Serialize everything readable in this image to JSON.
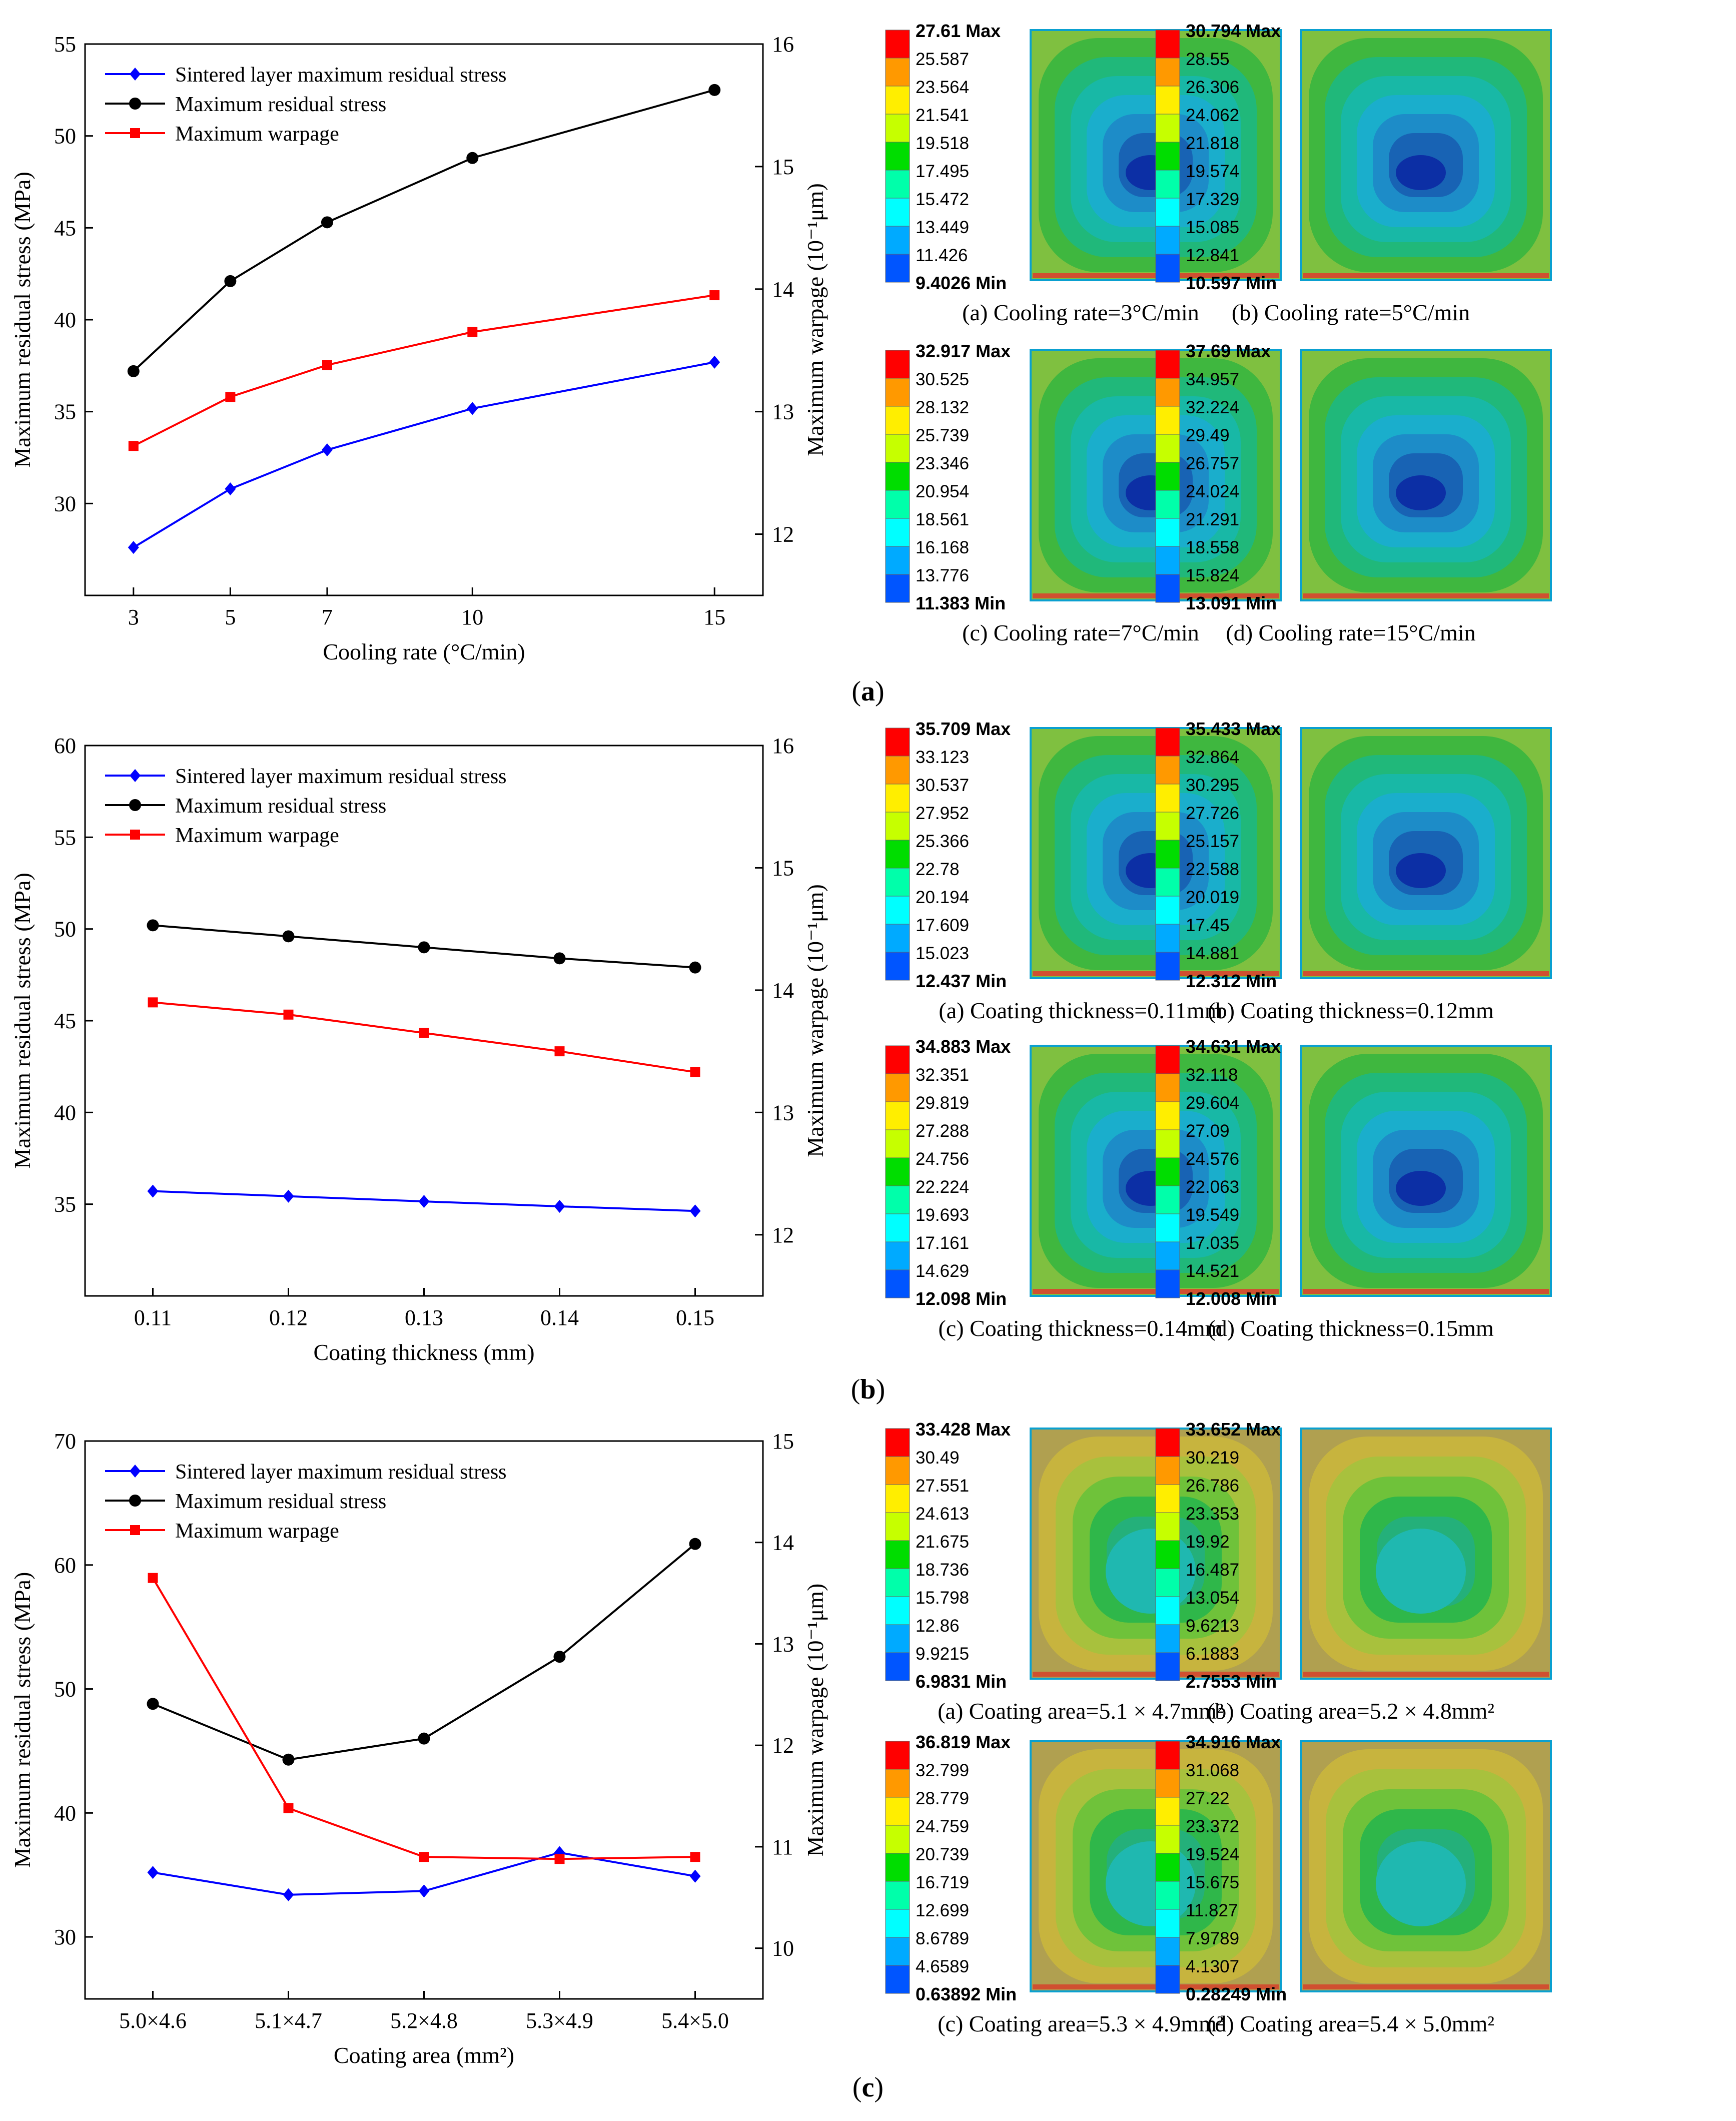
{
  "rows": [
    {
      "label": "a",
      "chart": {
        "type": "line",
        "categories": [
          "3",
          "5",
          "7",
          "10",
          "15"
        ],
        "x": [
          3,
          5,
          7,
          10,
          15
        ],
        "xlim": [
          2.0,
          16.0
        ],
        "xlabel": "Cooling rate (°C/min)",
        "ylabel": "Maximum residual stress (MPa)",
        "y2label": "Maximum warpage (10⁻¹μm)",
        "ylim": [
          25,
          55
        ],
        "yticks": [
          30,
          35,
          40,
          45,
          50,
          55
        ],
        "y2lim": [
          11.5,
          16
        ],
        "y2ticks": [
          12,
          13,
          14,
          15,
          16
        ],
        "legend_position": "top-left",
        "series": [
          {
            "name": "Sintered layer maximum residual stress",
            "color": "#0000ff",
            "marker": "diamond",
            "axis": "left",
            "values": [
              27.61,
              30.794,
              32.917,
              35.17,
              37.69
            ]
          },
          {
            "name": "Maximum residual stress",
            "color": "#000000",
            "marker": "circle",
            "axis": "left",
            "values": [
              37.2,
              42.1,
              45.3,
              48.8,
              52.5
            ]
          },
          {
            "name": "Maximum warpage",
            "color": "#ff0000",
            "marker": "square",
            "axis": "right",
            "values": [
              12.72,
              13.12,
              13.38,
              13.65,
              13.95
            ]
          }
        ]
      },
      "contours": [
        {
          "caption": "(a) Cooling rate=3°C/min",
          "labels": [
            "27.61 Max",
            "25.587",
            "23.564",
            "21.541",
            "19.518",
            "17.495",
            "15.472",
            "13.449",
            "11.426",
            "9.4026 Min"
          ]
        },
        {
          "caption": "(b) Cooling rate=5°C/min",
          "labels": [
            "30.794 Max",
            "28.55",
            "26.306",
            "24.062",
            "21.818",
            "19.574",
            "17.329",
            "15.085",
            "12.841",
            "10.597 Min"
          ]
        },
        {
          "caption": "(c) Cooling rate=7°C/min",
          "labels": [
            "32.917 Max",
            "30.525",
            "28.132",
            "25.739",
            "23.346",
            "20.954",
            "18.561",
            "16.168",
            "13.776",
            "11.383 Min"
          ]
        },
        {
          "caption": "(d) Cooling rate=15°C/min",
          "labels": [
            "37.69 Max",
            "34.957",
            "32.224",
            "29.49",
            "26.757",
            "24.024",
            "21.291",
            "18.558",
            "15.824",
            "13.091 Min"
          ]
        }
      ]
    },
    {
      "label": "b",
      "chart": {
        "type": "line",
        "categories": [
          "0.11",
          "0.12",
          "0.13",
          "0.14",
          "0.15"
        ],
        "x": [
          0.11,
          0.12,
          0.13,
          0.14,
          0.15
        ],
        "xlim": [
          0.105,
          0.155
        ],
        "xlabel": "Coating thickness (mm)",
        "ylabel": "Maximum residual stress (MPa)",
        "y2label": "Maximum warpage (10⁻¹μm)",
        "ylim": [
          30,
          60
        ],
        "yticks": [
          35,
          40,
          45,
          50,
          55,
          60
        ],
        "y2lim": [
          11.5,
          16
        ],
        "y2ticks": [
          12,
          13,
          14,
          15,
          16
        ],
        "legend_position": "top-left",
        "series": [
          {
            "name": "Sintered layer maximum residual stress",
            "color": "#0000ff",
            "marker": "diamond",
            "axis": "left",
            "values": [
              35.709,
              35.433,
              35.15,
              34.883,
              34.631
            ]
          },
          {
            "name": "Maximum residual stress",
            "color": "#000000",
            "marker": "circle",
            "axis": "left",
            "values": [
              50.2,
              49.6,
              49.0,
              48.4,
              47.9
            ]
          },
          {
            "name": "Maximum warpage",
            "color": "#ff0000",
            "marker": "square",
            "axis": "right",
            "values": [
              13.9,
              13.8,
              13.65,
              13.5,
              13.33
            ]
          }
        ]
      },
      "contours": [
        {
          "caption": "(a) Coating thickness=0.11mm",
          "labels": [
            "35.709 Max",
            "33.123",
            "30.537",
            "27.952",
            "25.366",
            "22.78",
            "20.194",
            "17.609",
            "15.023",
            "12.437 Min"
          ]
        },
        {
          "caption": "(b) Coating thickness=0.12mm",
          "labels": [
            "35.433 Max",
            "32.864",
            "30.295",
            "27.726",
            "25.157",
            "22.588",
            "20.019",
            "17.45",
            "14.881",
            "12.312 Min"
          ]
        },
        {
          "caption": "(c) Coating thickness=0.14mm",
          "labels": [
            "34.883 Max",
            "32.351",
            "29.819",
            "27.288",
            "24.756",
            "22.224",
            "19.693",
            "17.161",
            "14.629",
            "12.098 Min"
          ]
        },
        {
          "caption": "(d) Coating thickness=0.15mm",
          "labels": [
            "34.631 Max",
            "32.118",
            "29.604",
            "27.09",
            "24.576",
            "22.063",
            "19.549",
            "17.035",
            "14.521",
            "12.008 Min"
          ]
        }
      ]
    },
    {
      "label": "c",
      "chart": {
        "type": "line",
        "categories": [
          "5.0×4.6",
          "5.1×4.7",
          "5.2×4.8",
          "5.3×4.9",
          "5.4×5.0"
        ],
        "x": [
          0,
          1,
          2,
          3,
          4
        ],
        "xlim": [
          -0.5,
          4.5
        ],
        "xlabel": "Coating area (mm²)",
        "ylabel": "Maximum residual stress (MPa)",
        "y2label": "Maximum warpage (10⁻¹μm)",
        "ylim": [
          25,
          70
        ],
        "yticks": [
          30,
          40,
          50,
          60,
          70
        ],
        "y2lim": [
          9.5,
          15
        ],
        "y2ticks": [
          10,
          11,
          12,
          13,
          14,
          15
        ],
        "legend_position": "top-left",
        "series": [
          {
            "name": "Sintered layer maximum residual stress",
            "color": "#0000ff",
            "marker": "diamond",
            "axis": "left",
            "values": [
              35.2,
              33.4,
              33.7,
              36.8,
              34.9
            ]
          },
          {
            "name": "Maximum residual stress",
            "color": "#000000",
            "marker": "circle",
            "axis": "left",
            "values": [
              48.8,
              44.3,
              46.0,
              52.6,
              61.7
            ]
          },
          {
            "name": "Maximum warpage",
            "color": "#ff0000",
            "marker": "square",
            "axis": "right",
            "values": [
              13.65,
              11.38,
              10.9,
              10.88,
              10.9
            ]
          }
        ]
      },
      "contours": [
        {
          "caption": "(a) Coating area=5.1 × 4.7mm²",
          "labels": [
            "33.428 Max",
            "30.49",
            "27.551",
            "24.613",
            "21.675",
            "18.736",
            "15.798",
            "12.86",
            "9.9215",
            "6.9831 Min"
          ]
        },
        {
          "caption": "(b) Coating area=5.2 × 4.8mm²",
          "labels": [
            "33.652 Max",
            "30.219",
            "26.786",
            "23.353",
            "19.92",
            "16.487",
            "13.054",
            "9.6213",
            "6.1883",
            "2.7553 Min"
          ]
        },
        {
          "caption": "(c) Coating area=5.3 × 4.9mm²",
          "labels": [
            "36.819 Max",
            "32.799",
            "28.779",
            "24.759",
            "20.739",
            "16.719",
            "12.699",
            "8.6789",
            "4.6589",
            "0.63892 Min"
          ]
        },
        {
          "caption": "(d) Coating area=5.4 × 5.0mm²",
          "labels": [
            "34.916 Max",
            "31.068",
            "27.22",
            "23.372",
            "19.524",
            "15.675",
            "11.827",
            "7.9789",
            "4.1307",
            "0.28249 Min"
          ]
        }
      ]
    }
  ],
  "colorbar_colors": [
    "#ff0000",
    "#ff9900",
    "#ffee00",
    "#c6ff00",
    "#00dd00",
    "#00ffaa",
    "#00ffff",
    "#00aaff",
    "#0055ff",
    "#0000dd"
  ]
}
